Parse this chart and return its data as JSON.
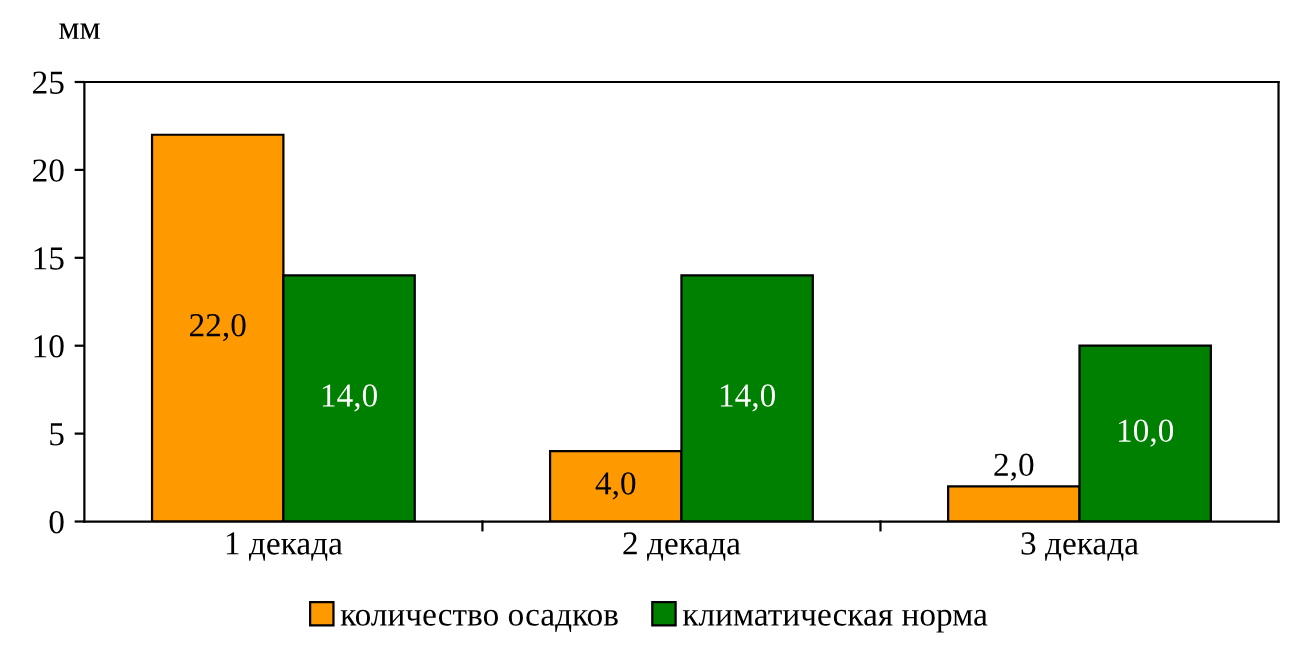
{
  "chart_data": {
    "type": "bar",
    "ylabel": "мм",
    "categories": [
      "1 декада",
      "2 декада",
      "3 декада"
    ],
    "series": [
      {
        "name": "количество осадков",
        "color": "#ff9900",
        "values": [
          22,
          4,
          2
        ],
        "value_labels": [
          "22,0",
          "4,0",
          "2,0"
        ]
      },
      {
        "name": "климатическая норма",
        "color": "#008000",
        "values": [
          14,
          14,
          10
        ],
        "value_labels": [
          "14,0",
          "14,0",
          "10,0"
        ]
      }
    ],
    "ylim": [
      0,
      25
    ],
    "yticks": [
      0,
      5,
      10,
      15,
      20,
      25
    ],
    "grid": false,
    "legend": "bottom"
  }
}
